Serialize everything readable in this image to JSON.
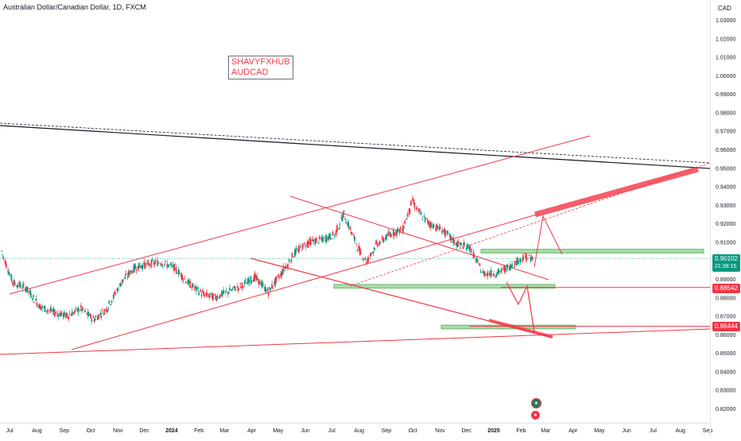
{
  "header": {
    "title": "Australian Dollar/Canadian Dollar, 1D, FXCM"
  },
  "annotation": {
    "line1": "SHAVYFXHUB",
    "line2": "AUDCAD"
  },
  "colors": {
    "up": "#089981",
    "down": "#f23645",
    "drawing_red": "#f23645",
    "zone_green": "#66bb6a",
    "trend_black": "#131722"
  },
  "chart_data": {
    "type": "candlestick",
    "currency": "CAD",
    "ylim": [
      0.815,
      1.04
    ],
    "y_ticks": [
      "1.03000",
      "1.02000",
      "1.01000",
      "1.00000",
      "0.99000",
      "0.98000",
      "0.97000",
      "0.96000",
      "0.95000",
      "0.94000",
      "0.93000",
      "0.92000",
      "0.91000",
      "0.90000",
      "0.89000",
      "0.88000",
      "0.87000",
      "0.86000",
      "0.85000",
      "0.84000",
      "0.83000",
      "0.82000"
    ],
    "x_ticks": [
      "Jul",
      "Aug",
      "Sep",
      "Oct",
      "Nov",
      "Dec",
      "2024",
      "Feb",
      "Mar",
      "Apr",
      "May",
      "Jun",
      "Jul",
      "Aug",
      "Sep",
      "Oct",
      "Nov",
      "Dec",
      "2025",
      "Feb",
      "Mar",
      "Apr",
      "May",
      "Jun",
      "Jul",
      "Aug",
      "Sep"
    ],
    "x_range": [
      "2023-06-20",
      "2025-09-10"
    ],
    "price_labels": {
      "current": "0.90102",
      "countdown": "21:38:15",
      "level1": "0.88542",
      "level2": "0.86444"
    },
    "ohlc_monthly_approx": [
      {
        "date": "2023-06-22",
        "close": 0.905
      },
      {
        "date": "2023-07-05",
        "close": 0.888
      },
      {
        "date": "2023-07-20",
        "close": 0.885
      },
      {
        "date": "2023-08-05",
        "close": 0.875
      },
      {
        "date": "2023-08-20",
        "close": 0.872
      },
      {
        "date": "2023-09-05",
        "close": 0.87
      },
      {
        "date": "2023-09-20",
        "close": 0.874
      },
      {
        "date": "2023-10-05",
        "close": 0.868
      },
      {
        "date": "2023-10-20",
        "close": 0.874
      },
      {
        "date": "2023-11-05",
        "close": 0.888
      },
      {
        "date": "2023-11-20",
        "close": 0.896
      },
      {
        "date": "2023-12-05",
        "close": 0.898
      },
      {
        "date": "2023-12-20",
        "close": 0.899
      },
      {
        "date": "2024-01-05",
        "close": 0.896
      },
      {
        "date": "2024-01-20",
        "close": 0.888
      },
      {
        "date": "2024-02-05",
        "close": 0.882
      },
      {
        "date": "2024-02-20",
        "close": 0.88
      },
      {
        "date": "2024-03-05",
        "close": 0.883
      },
      {
        "date": "2024-03-20",
        "close": 0.886
      },
      {
        "date": "2024-04-05",
        "close": 0.891
      },
      {
        "date": "2024-04-20",
        "close": 0.883
      },
      {
        "date": "2024-05-05",
        "close": 0.893
      },
      {
        "date": "2024-05-20",
        "close": 0.904
      },
      {
        "date": "2024-06-05",
        "close": 0.91
      },
      {
        "date": "2024-06-20",
        "close": 0.911
      },
      {
        "date": "2024-07-05",
        "close": 0.914
      },
      {
        "date": "2024-07-15",
        "close": 0.925
      },
      {
        "date": "2024-08-01",
        "close": 0.906
      },
      {
        "date": "2024-08-10",
        "close": 0.899
      },
      {
        "date": "2024-08-20",
        "close": 0.908
      },
      {
        "date": "2024-09-05",
        "close": 0.914
      },
      {
        "date": "2024-09-20",
        "close": 0.917
      },
      {
        "date": "2024-10-01",
        "close": 0.932
      },
      {
        "date": "2024-10-10",
        "close": 0.925
      },
      {
        "date": "2024-10-20",
        "close": 0.92
      },
      {
        "date": "2024-11-05",
        "close": 0.916
      },
      {
        "date": "2024-11-20",
        "close": 0.909
      },
      {
        "date": "2024-12-05",
        "close": 0.907
      },
      {
        "date": "2024-12-20",
        "close": 0.893
      },
      {
        "date": "2025-01-05",
        "close": 0.893
      },
      {
        "date": "2025-01-20",
        "close": 0.897
      },
      {
        "date": "2025-02-05",
        "close": 0.902
      },
      {
        "date": "2025-02-15",
        "close": 0.901
      }
    ],
    "annotations": {
      "long_channel": true,
      "descending_channel": true,
      "support_zone_1": [
        0.885,
        0.887
      ],
      "support_zone_2": [
        0.863,
        0.865
      ],
      "resistance_zone": [
        0.904,
        0.906
      ],
      "black_trendline": true
    }
  }
}
